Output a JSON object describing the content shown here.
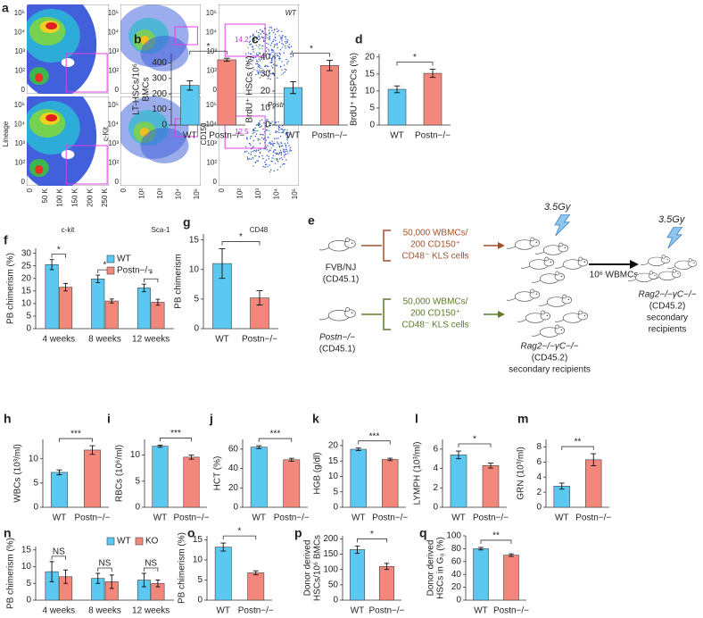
{
  "chart_data": [
    {
      "type": "bar",
      "panel_label": "b",
      "ylabel": [
        "LT-HSCs/10⁶",
        "BMCs"
      ],
      "categories": [
        "WT",
        "Postn−/−"
      ],
      "values": [
        255,
        420
      ],
      "errors": [
        30,
        10
      ],
      "colors": [
        "#5bc8f2",
        "#f4877c"
      ],
      "ylim": [
        0,
        460
      ],
      "yticks": [
        0,
        100,
        200,
        300,
        400
      ],
      "annotations": [
        "*"
      ]
    },
    {
      "type": "bar",
      "panel_label": "c",
      "ylabel": [
        "BrdU⁺ HSCs (%)"
      ],
      "categories": [
        "WT",
        "Postn−/−"
      ],
      "values": [
        22,
        35
      ],
      "errors": [
        3.5,
        3
      ],
      "colors": [
        "#5bc8f2",
        "#f4877c"
      ],
      "ylim": [
        0,
        42
      ],
      "yticks": [
        0,
        10,
        20,
        30,
        40
      ],
      "annotations": [
        "*"
      ]
    },
    {
      "type": "bar",
      "panel_label": "d",
      "ylabel": [
        "BrdU⁺ HSPCs (%)"
      ],
      "categories": [
        "WT",
        "Postn−/−"
      ],
      "values": [
        10.5,
        15.2
      ],
      "errors": [
        1,
        1.2
      ],
      "colors": [
        "#5bc8f2",
        "#f4877c"
      ],
      "ylim": [
        0,
        21
      ],
      "yticks": [
        0,
        5,
        10,
        15,
        20
      ],
      "annotations": [
        "*"
      ]
    },
    {
      "type": "grouped-bar",
      "panel_label": "f",
      "ylabel": [
        "PB chimerism (%)"
      ],
      "categories": [
        "4 weeks",
        "8 weeks",
        "12 weeks"
      ],
      "series": [
        {
          "name": "WT",
          "color": "#5bc8f2",
          "values": [
            25.5,
            19.8,
            16.2
          ],
          "errors": [
            2,
            1.5,
            1.5
          ]
        },
        {
          "name": "Postn−/−",
          "color": "#f4877c",
          "values": [
            16.5,
            11,
            10.5
          ],
          "errors": [
            1.5,
            0.8,
            1.2
          ]
        }
      ],
      "ylim": [
        0,
        32
      ],
      "yticks": [
        0,
        5,
        10,
        15,
        20,
        25,
        30
      ],
      "annotations": [
        "*",
        "*",
        "*"
      ],
      "legend": "upper right"
    },
    {
      "type": "bar",
      "panel_label": "g",
      "ylabel": [
        "PB chimerism"
      ],
      "categories": [
        "WT",
        "Postn−/−"
      ],
      "values": [
        11,
        5.2
      ],
      "errors": [
        2.5,
        1.2
      ],
      "colors": [
        "#5bc8f2",
        "#f4877c"
      ],
      "ylim": [
        0,
        16
      ],
      "yticks": [
        0,
        5,
        10,
        15
      ],
      "annotations": [
        "*"
      ]
    },
    {
      "type": "bar",
      "panel_label": "h",
      "ylabel": [
        "WBCs (10³/ml)"
      ],
      "categories": [
        "WT",
        "Postn−/−"
      ],
      "values": [
        7.2,
        11.8
      ],
      "errors": [
        0.5,
        0.9
      ],
      "colors": [
        "#5bc8f2",
        "#f4877c"
      ],
      "ylim": [
        0,
        14
      ],
      "yticks": [
        0,
        5,
        10
      ],
      "annotations": [
        "***"
      ]
    },
    {
      "type": "bar",
      "panel_label": "i",
      "ylabel": [
        "RBCs (10⁶/ml)"
      ],
      "categories": [
        "WT",
        "Postn−/−"
      ],
      "values": [
        11.7,
        9.6
      ],
      "errors": [
        0.2,
        0.4
      ],
      "colors": [
        "#5bc8f2",
        "#f4877c"
      ],
      "ylim": [
        0,
        13
      ],
      "yticks": [
        0,
        5,
        10
      ],
      "annotations": [
        "***"
      ]
    },
    {
      "type": "bar",
      "panel_label": "j",
      "ylabel": [
        "HCT (%)"
      ],
      "categories": [
        "WT",
        "Postn−/−"
      ],
      "values": [
        62,
        49
      ],
      "errors": [
        1.5,
        1.5
      ],
      "colors": [
        "#5bc8f2",
        "#f4877c"
      ],
      "ylim": [
        0,
        70
      ],
      "yticks": [
        0,
        20,
        40,
        60
      ],
      "annotations": [
        "***"
      ]
    },
    {
      "type": "bar",
      "panel_label": "k",
      "ylabel": [
        "HGB (g/dl)"
      ],
      "categories": [
        "WT",
        "Postn−/−"
      ],
      "values": [
        18.8,
        15.5
      ],
      "errors": [
        0.4,
        0.4
      ],
      "colors": [
        "#5bc8f2",
        "#f4877c"
      ],
      "ylim": [
        0,
        22
      ],
      "yticks": [
        0,
        5,
        10,
        15,
        20
      ],
      "annotations": [
        "***"
      ]
    },
    {
      "type": "bar",
      "panel_label": "l",
      "ylabel": [
        "LYMPH (10³/ml)"
      ],
      "categories": [
        "WT",
        "Postn−/−"
      ],
      "values": [
        5.4,
        4.3
      ],
      "errors": [
        0.4,
        0.25
      ],
      "colors": [
        "#5bc8f2",
        "#f4877c"
      ],
      "ylim": [
        0,
        7
      ],
      "yticks": [
        0,
        2,
        4,
        6
      ],
      "annotations": [
        "*"
      ]
    },
    {
      "type": "bar",
      "panel_label": "m",
      "ylabel": [
        "GRN (10³/ml)"
      ],
      "categories": [
        "WT",
        "Postn−/−"
      ],
      "values": [
        2.8,
        6.3
      ],
      "errors": [
        0.4,
        0.8
      ],
      "colors": [
        "#5bc8f2",
        "#f4877c"
      ],
      "ylim": [
        0,
        9
      ],
      "yticks": [
        0,
        2,
        4,
        6,
        8
      ],
      "annotations": [
        "**"
      ]
    },
    {
      "type": "grouped-bar",
      "panel_label": "n",
      "ylabel": [
        "PB chimerism (%)"
      ],
      "categories": [
        "4 weeks",
        "8 weeks",
        "12 weeks"
      ],
      "series": [
        {
          "name": "WT",
          "color": "#5bc8f2",
          "values": [
            8.5,
            6.5,
            6
          ],
          "errors": [
            3,
            1.5,
            2
          ]
        },
        {
          "name": "KO",
          "color": "#f4877c",
          "values": [
            7,
            5.5,
            5
          ],
          "errors": [
            2,
            2,
            1
          ]
        }
      ],
      "ylim": [
        0,
        16
      ],
      "yticks": [
        0,
        5,
        10,
        15
      ],
      "annotations": [
        "NS",
        "NS",
        "NS"
      ],
      "legend": "upper right"
    },
    {
      "type": "bar",
      "panel_label": "o",
      "ylabel": [
        "PB chimerism (%)"
      ],
      "categories": [
        "WT",
        "Postn−/−"
      ],
      "values": [
        13.2,
        6.8
      ],
      "errors": [
        1,
        0.5
      ],
      "colors": [
        "#5bc8f2",
        "#f4877c"
      ],
      "ylim": [
        0,
        16
      ],
      "yticks": [
        0,
        5,
        10,
        15
      ],
      "annotations": [
        "*"
      ]
    },
    {
      "type": "bar",
      "panel_label": "p",
      "ylabel": [
        "Donor derived",
        "HSCs/10⁶ BMCs"
      ],
      "categories": [
        "WT",
        "Postn−/−"
      ],
      "values": [
        165,
        110
      ],
      "errors": [
        12,
        10
      ],
      "colors": [
        "#5bc8f2",
        "#f4877c"
      ],
      "ylim": [
        0,
        210
      ],
      "yticks": [
        0,
        50,
        100,
        150,
        200
      ],
      "annotations": [
        "*"
      ]
    },
    {
      "type": "bar",
      "panel_label": "q",
      "ylabel": [
        "Donor derived",
        "HSCs in G₀ (%)"
      ],
      "categories": [
        "WT",
        "Postn−/−"
      ],
      "values": [
        80,
        70
      ],
      "errors": [
        2,
        2
      ],
      "colors": [
        "#5bc8f2",
        "#f4877c"
      ],
      "ylim": [
        0,
        100
      ],
      "yticks": [
        0,
        20,
        40,
        60,
        80,
        100
      ],
      "annotations": [
        "**"
      ]
    }
  ],
  "flow_panel": {
    "panel_label": "a",
    "samples": [
      "WT",
      "Postn−/−"
    ],
    "gate_values": [
      "14.2",
      "12.5"
    ],
    "plots": [
      {
        "xlabel": "c-kit",
        "ylabel": "Lineage",
        "xticks": [
          "0",
          "50 K",
          "100 K",
          "150 K",
          "200 K",
          "250 K"
        ],
        "yticks": [
          "10⁵",
          "10⁴",
          "10³",
          "10²",
          "0"
        ]
      },
      {
        "xlabel": "Sca-1",
        "ylabel": "c-Kit",
        "xticks": [
          "0",
          "10²",
          "10³",
          "10⁴",
          "10⁵"
        ],
        "yticks": [
          "10⁵",
          "10⁴",
          "10³",
          "10²",
          "0"
        ]
      },
      {
        "xlabel": "CD48",
        "ylabel": "CD150",
        "xticks": [
          "0",
          "10²",
          "10³",
          "10⁴",
          "10⁵"
        ],
        "yticks": [
          "10⁵",
          "10⁴",
          "10³",
          "10²",
          "0"
        ]
      }
    ]
  },
  "diagram": {
    "panel_label": "e",
    "doses": [
      "3.5Gy",
      "3.5Gy"
    ],
    "donors": [
      {
        "strain": "FVB/NJ",
        "ly": "(CD45.1)"
      },
      {
        "strain": "Postn−/−",
        "ly": "(CD45.1)"
      }
    ],
    "transplant": [
      [
        "50,000 WBMCs/",
        "200 CD150⁺",
        "CD48⁻ KLS cells"
      ],
      [
        "50,000 WBMCs/",
        "200 CD150⁺",
        "CD48⁻ KLS cells"
      ]
    ],
    "recipients": {
      "strain": "Rag2−/−γC−/−",
      "ly": "(CD45.2)",
      "label": "secondary recipients"
    },
    "transfer": "10⁶ WBMCs",
    "final": {
      "strain": "Rag2−/−γC−/−",
      "ly": "(CD45.2)",
      "label": [
        "secondary",
        "recipients"
      ]
    }
  }
}
